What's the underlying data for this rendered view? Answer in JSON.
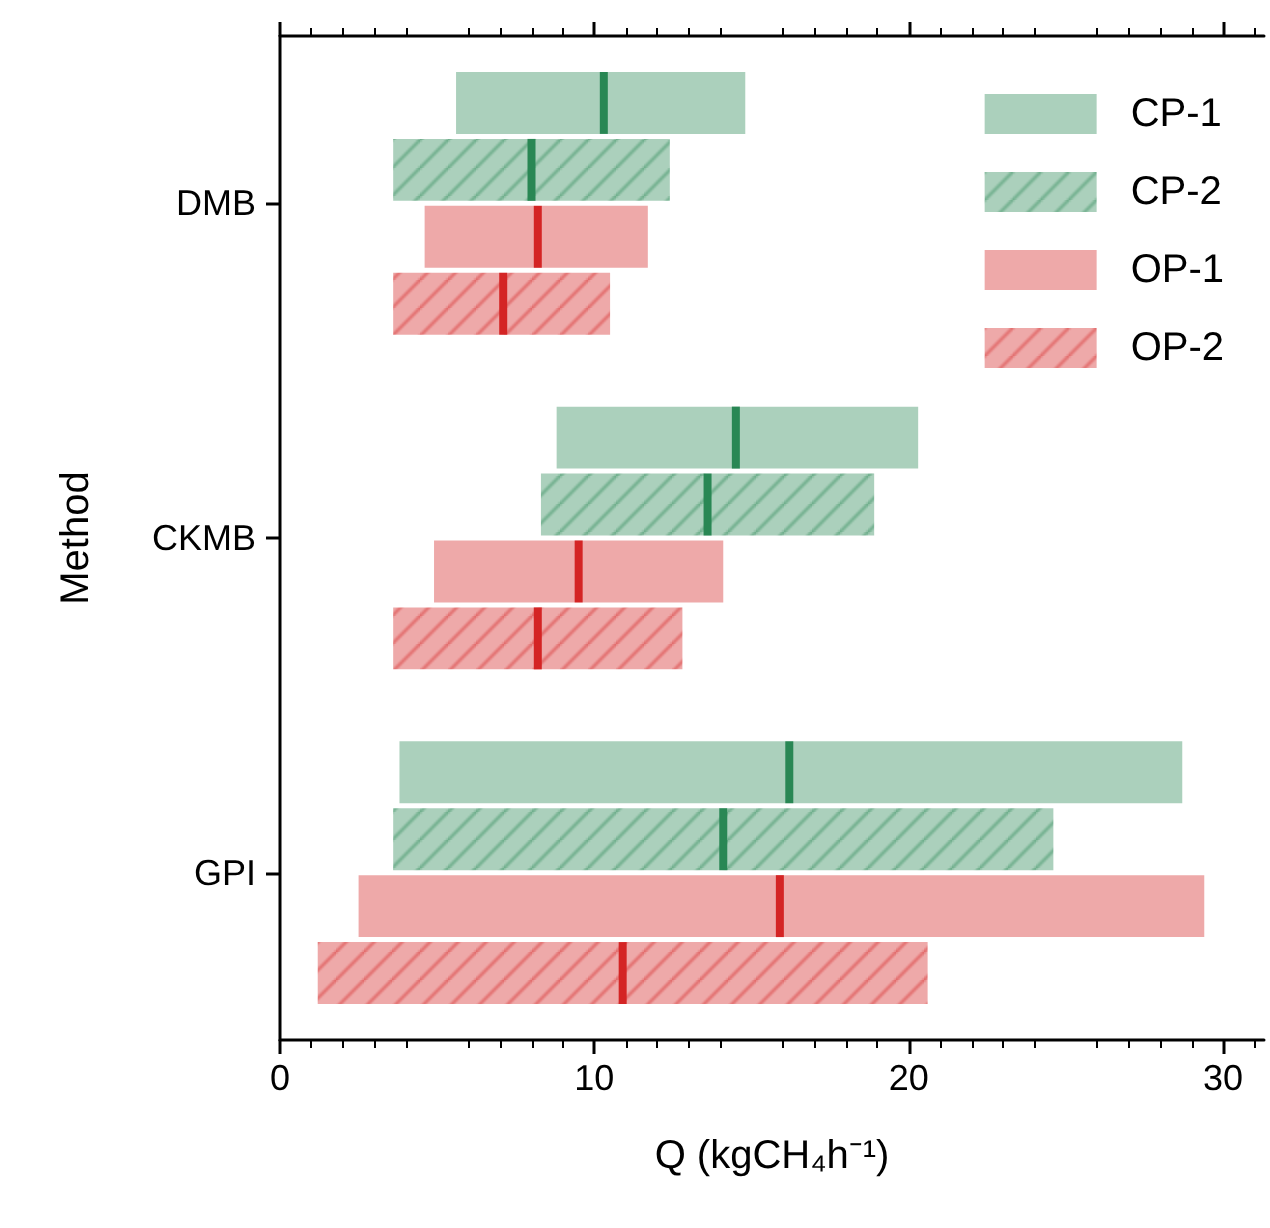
{
  "chart_data": {
    "type": "box",
    "orientation": "horizontal",
    "xlabel": "Q (kgCH₄h⁻¹)",
    "ylabel": "Method",
    "categories": [
      "DMB",
      "CKMB",
      "GPI"
    ],
    "series": [
      {
        "name": "CP-1",
        "color": "#abd0bc",
        "boxes": [
          {
            "low": 5.6,
            "q1": 5.6,
            "median": 10.3,
            "q3": 14.8,
            "high": 14.8
          },
          {
            "low": 8.8,
            "q1": 8.8,
            "median": 14.5,
            "q3": 20.3,
            "high": 20.3
          },
          {
            "low": 3.8,
            "q1": 3.8,
            "median": 16.2,
            "q3": 28.7,
            "high": 28.7
          }
        ]
      },
      {
        "name": "CP-2",
        "color": "#abd0bc",
        "boxes": [
          {
            "low": 3.6,
            "q1": 3.6,
            "median": 8.0,
            "q3": 12.4,
            "high": 12.4
          },
          {
            "low": 8.3,
            "q1": 8.3,
            "median": 13.6,
            "q3": 18.9,
            "high": 18.9
          },
          {
            "low": 3.6,
            "q1": 3.6,
            "median": 14.1,
            "q3": 24.6,
            "high": 24.6
          }
        ]
      },
      {
        "name": "OP-1",
        "color": "#eea9a9",
        "boxes": [
          {
            "low": 4.6,
            "q1": 4.6,
            "median": 8.2,
            "q3": 11.7,
            "high": 11.7
          },
          {
            "low": 4.9,
            "q1": 4.9,
            "median": 9.5,
            "q3": 14.1,
            "high": 14.1
          },
          {
            "low": 2.5,
            "q1": 2.5,
            "median": 15.9,
            "q3": 29.4,
            "high": 29.4
          }
        ]
      },
      {
        "name": "OP-2",
        "color": "#eea9a9",
        "boxes": [
          {
            "low": 3.6,
            "q1": 3.6,
            "median": 7.1,
            "q3": 10.5,
            "high": 10.5
          },
          {
            "low": 3.6,
            "q1": 3.6,
            "median": 8.2,
            "q3": 12.8,
            "high": 12.8
          },
          {
            "low": 1.2,
            "q1": 1.2,
            "median": 10.9,
            "q3": 20.6,
            "high": 20.6
          }
        ]
      }
    ],
    "xlim": [
      0,
      31.3
    ],
    "xticks": [
      0,
      10,
      20,
      30
    ],
    "legend": "top right"
  }
}
